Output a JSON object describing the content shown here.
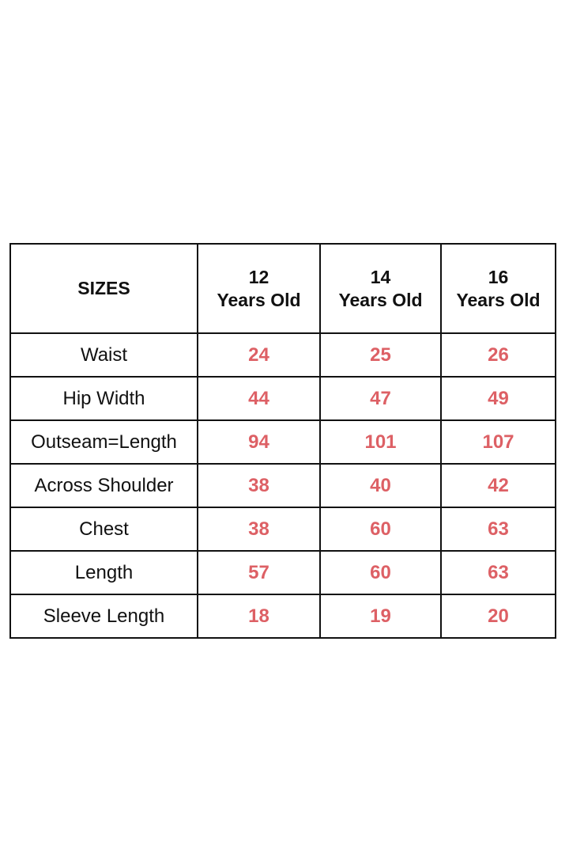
{
  "colors": {
    "value": "#dd6065",
    "text": "#111111",
    "border": "#111111"
  },
  "table": {
    "corner_label": "SIZES",
    "columns": [
      {
        "number": "12",
        "unit": "Years Old"
      },
      {
        "number": "14",
        "unit": "Years Old"
      },
      {
        "number": "16",
        "unit": "Years Old"
      }
    ],
    "rows": [
      {
        "label": "Waist",
        "values": [
          "24",
          "25",
          "26"
        ]
      },
      {
        "label": "Hip Width",
        "values": [
          "44",
          "47",
          "49"
        ]
      },
      {
        "label": "Outseam=Length",
        "values": [
          "94",
          "101",
          "107"
        ]
      },
      {
        "label": "Across Shoulder",
        "values": [
          "38",
          "40",
          "42"
        ]
      },
      {
        "label": "Chest",
        "values": [
          "38",
          "60",
          "63"
        ]
      },
      {
        "label": "Length",
        "values": [
          "57",
          "60",
          "63"
        ]
      },
      {
        "label": "Sleeve Length",
        "values": [
          "18",
          "19",
          "20"
        ]
      }
    ]
  }
}
